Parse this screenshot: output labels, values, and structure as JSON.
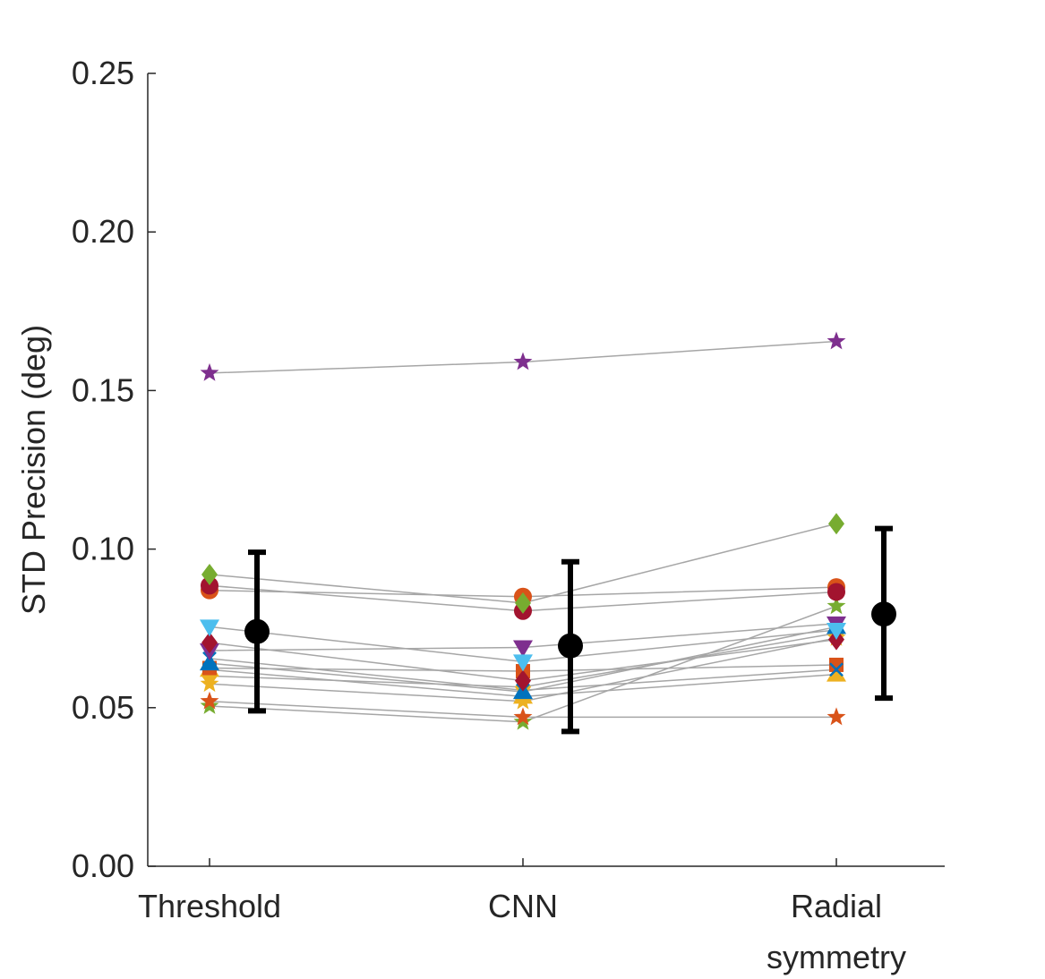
{
  "chart_data": {
    "type": "scatter",
    "title": "",
    "xlabel": "",
    "ylabel": "STD Precision (deg)",
    "ylim": [
      0,
      0.25
    ],
    "yticks": [
      "0.00",
      "0.05",
      "0.10",
      "0.15",
      "0.20",
      "0.25"
    ],
    "categories": [
      {
        "line1": "Threshold",
        "line2": ""
      },
      {
        "line1": "CNN",
        "line2": ""
      },
      {
        "line1": "Radial",
        "line2": "symmetry"
      }
    ],
    "grid": false,
    "subjects": [
      {
        "marker": "star",
        "color": "#7E2F8E",
        "values": [
          0.1555,
          0.159,
          0.1655
        ]
      },
      {
        "marker": "diamond",
        "color": "#77AC30",
        "values": [
          0.092,
          0.083,
          0.108
        ]
      },
      {
        "marker": "circle",
        "color": "#A2142F",
        "values": [
          0.0885,
          0.0805,
          0.0865
        ]
      },
      {
        "marker": "circle",
        "color": "#D95319",
        "values": [
          0.087,
          0.085,
          0.088
        ]
      },
      {
        "marker": "triangle-down",
        "color": "#4DBEEE",
        "values": [
          0.0755,
          0.0645,
          0.0745
        ]
      },
      {
        "marker": "diamond",
        "color": "#A2142F",
        "values": [
          0.0705,
          0.0585,
          0.0715
        ]
      },
      {
        "marker": "triangle-down",
        "color": "#7E2F8E",
        "values": [
          0.068,
          0.069,
          0.0765
        ]
      },
      {
        "marker": "x",
        "color": "#0072BD",
        "values": [
          0.0655,
          0.0555,
          0.062
        ]
      },
      {
        "marker": "triangle-up",
        "color": "#0072BD",
        "values": [
          0.064,
          0.055,
          0.0755
        ]
      },
      {
        "marker": "square",
        "color": "#D95319",
        "values": [
          0.0625,
          0.0615,
          0.0635
        ]
      },
      {
        "marker": "triangle-up",
        "color": "#EDB120",
        "values": [
          0.062,
          0.0535,
          0.0605
        ]
      },
      {
        "marker": "diamond",
        "color": "#EDB120",
        "values": [
          0.06,
          0.0565,
          0.0735
        ]
      },
      {
        "marker": "star",
        "color": "#EDB120",
        "values": [
          0.0575,
          0.052,
          0.072
        ]
      },
      {
        "marker": "star",
        "color": "#D95319",
        "values": [
          0.052,
          0.047,
          0.047
        ]
      },
      {
        "marker": "star",
        "color": "#77AC30",
        "values": [
          0.0505,
          0.0455,
          0.082
        ]
      }
    ],
    "summary": {
      "color": "#000000",
      "means": [
        0.074,
        0.0695,
        0.0795
      ],
      "errors": [
        {
          "lower": 0.049,
          "upper": 0.099
        },
        {
          "lower": 0.0425,
          "upper": 0.096
        },
        {
          "lower": 0.053,
          "upper": 0.1065
        }
      ]
    },
    "line_color": "#A6A6A6",
    "axis_color": "#262626"
  }
}
